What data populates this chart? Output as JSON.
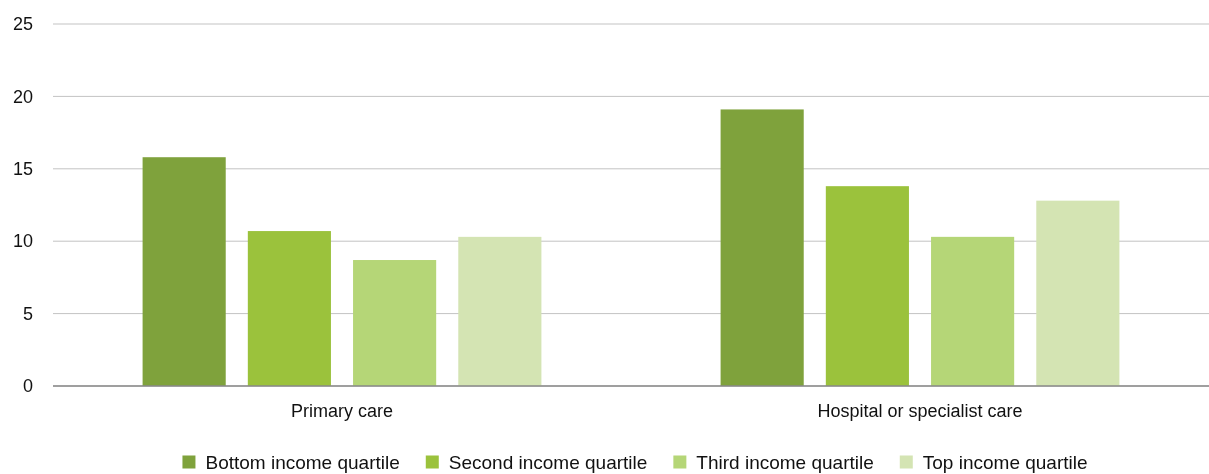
{
  "chart_data": {
    "type": "bar",
    "categories": [
      "Primary care",
      "Hospital or specialist care"
    ],
    "series": [
      {
        "name": "Bottom income quartile",
        "color": "#7fa23c",
        "values": [
          15.8,
          19.1
        ]
      },
      {
        "name": "Second income quartile",
        "color": "#9bc23c",
        "values": [
          10.7,
          13.8
        ]
      },
      {
        "name": "Third income quartile",
        "color": "#b5d677",
        "values": [
          8.7,
          10.3
        ]
      },
      {
        "name": "Top income quartile",
        "color": "#d4e4b3",
        "values": [
          10.3,
          12.8
        ]
      }
    ],
    "ylim": [
      0,
      25
    ],
    "yticks": [
      0,
      5,
      10,
      15,
      20,
      25
    ],
    "grid": "y",
    "legend": "bottom"
  }
}
